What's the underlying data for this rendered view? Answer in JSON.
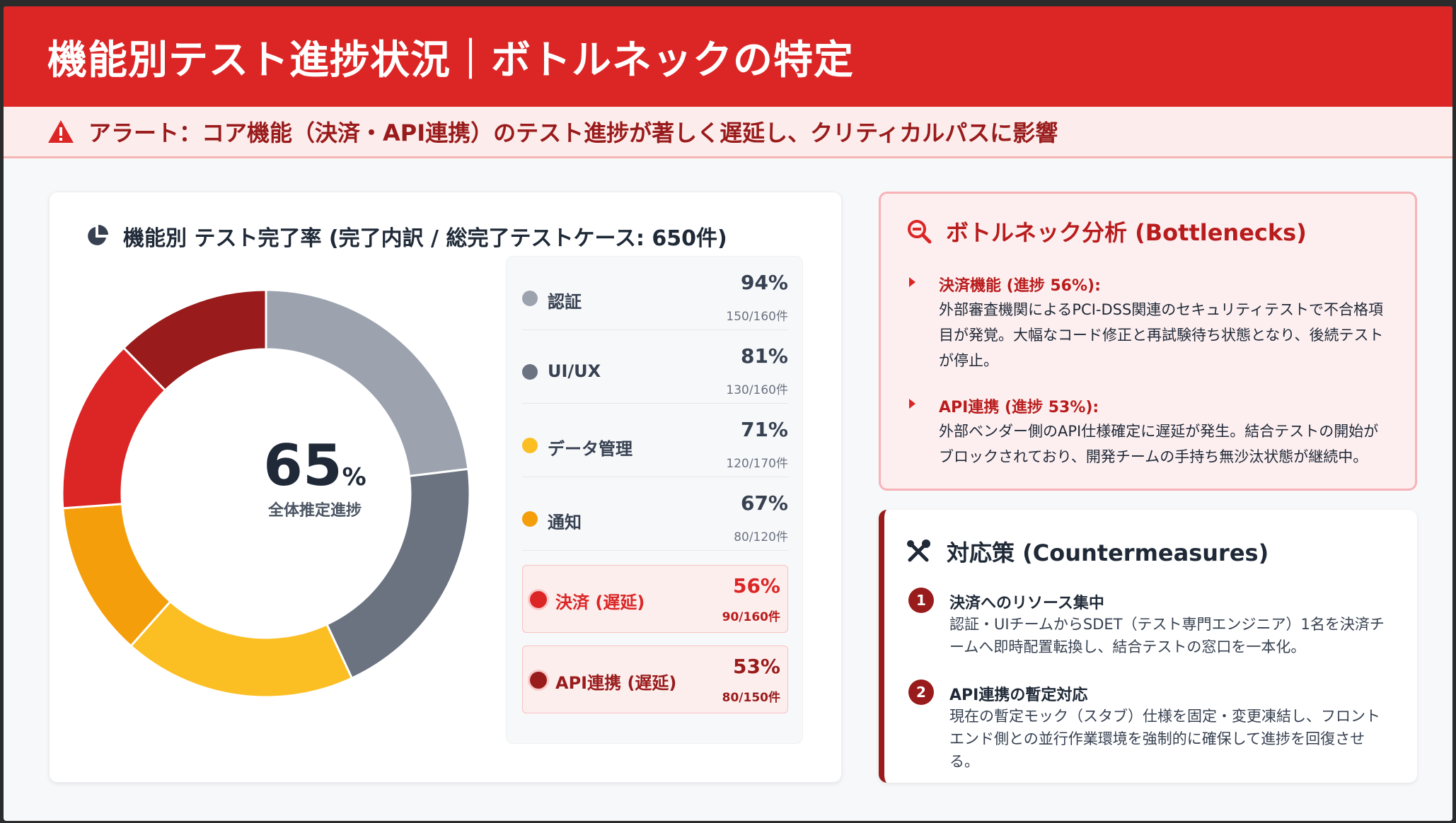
{
  "header": {
    "title": "機能別テスト進捗状況｜ボトルネックの特定"
  },
  "alert": {
    "icon": "warning-icon",
    "text": "アラート：コア機能（決済・API連携）のテスト進捗が著しく遅延し、クリティカルパスに影響"
  },
  "chart_card": {
    "icon": "pie-chart-icon",
    "title": "機能別 テスト完了率 (完了内訳 / 総完了テストケース: 650件)",
    "center_value": "65",
    "center_unit": "%",
    "center_label": "全体推定進捗"
  },
  "chart_data": {
    "type": "pie",
    "title": "機能別 テスト完了率 (完了内訳 / 総完了テストケース: 650件)",
    "variant": "donut",
    "center_value": 65,
    "center_label": "全体推定進捗",
    "categories": [
      "認証",
      "UI/UX",
      "データ管理",
      "通知",
      "決済 (遅延)",
      "API連携 (遅延)"
    ],
    "values": [
      150,
      130,
      120,
      80,
      90,
      80
    ],
    "totals": [
      160,
      160,
      170,
      120,
      160,
      150
    ],
    "percent": [
      94,
      81,
      71,
      67,
      56,
      53
    ],
    "colors": [
      "#9ca3af",
      "#6b7280",
      "#fbbf24",
      "#f59e0b",
      "#dc2626",
      "#991b1b"
    ]
  },
  "legend": [
    {
      "name": "認証",
      "pct": "94%",
      "count": "150/160件",
      "color": "#9ca3af",
      "delayed": false
    },
    {
      "name": "UI/UX",
      "pct": "81%",
      "count": "130/160件",
      "color": "#6b7280",
      "delayed": false
    },
    {
      "name": "データ管理",
      "pct": "71%",
      "count": "120/170件",
      "color": "#fbbf24",
      "delayed": false
    },
    {
      "name": "通知",
      "pct": "67%",
      "count": "80/120件",
      "color": "#f59e0b",
      "delayed": false
    },
    {
      "name": "決済 (遅延)",
      "pct": "56%",
      "count": "90/160件",
      "color": "#dc2626",
      "delayed": true
    },
    {
      "name": "API連携 (遅延)",
      "pct": "53%",
      "count": "80/150件",
      "color": "#991b1b",
      "delayed": true
    }
  ],
  "bottleneck": {
    "icon": "search-minus-icon",
    "title": "ボトルネック分析 (Bottlenecks)",
    "items": [
      {
        "head": "決済機能 (進捗 56%):",
        "desc": "外部審査機関によるPCI-DSS関連のセキュリティテストで不合格項目が発覚。大幅なコード修正と再試験待ち状態となり、後続テストが停止。"
      },
      {
        "head": "API連携 (進捗 53%):",
        "desc": "外部ベンダー側のAPI仕様確定に遅延が発生。結合テストの開始がブロックされており、開発チームの手持ち無沙汰状態が継続中。"
      }
    ]
  },
  "countermeasures": {
    "icon": "tools-icon",
    "title": "対応策 (Countermeasures)",
    "items": [
      {
        "num": "1",
        "head": "決済へのリソース集中",
        "desc": "認証・UIチームからSDET（テスト専門エンジニア）1名を決済チームへ即時配置転換し、結合テストの窓口を一本化。"
      },
      {
        "num": "2",
        "head": "API連携の暫定対応",
        "desc": "現在の暫定モック（スタブ）仕様を固定・変更凍結し、フロントエンド側との並行作業環境を強制的に確保して進捗を回復させる。"
      }
    ]
  }
}
